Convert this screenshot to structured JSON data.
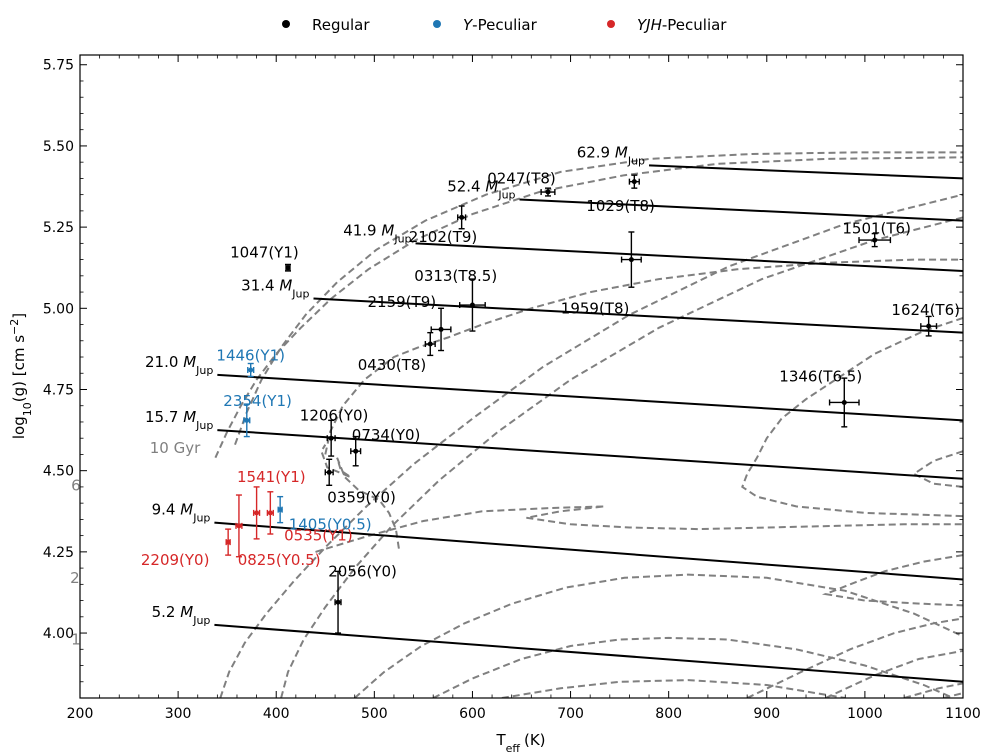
{
  "chart_data": {
    "type": "scatter",
    "xlabel": "T",
    "xlabel_sub": "eff",
    "xlabel_unit": "(K)",
    "ylabel_main": "log",
    "ylabel_sub": "10",
    "ylabel_mid": "(g) [cm s",
    "ylabel_sup": "−2",
    "ylabel_end": "]",
    "xlim": [
      200,
      1100
    ],
    "ylim": [
      3.8,
      5.78
    ],
    "x_ticks": [
      200,
      300,
      400,
      500,
      600,
      700,
      800,
      900,
      1000,
      1100
    ],
    "y_ticks": [
      4.0,
      4.25,
      4.5,
      4.75,
      5.0,
      5.25,
      5.5,
      5.75
    ],
    "y_tick_labels": [
      "4.00",
      "4.25",
      "4.50",
      "4.75",
      "5.00",
      "5.25",
      "5.50",
      "5.75"
    ],
    "legend": [
      {
        "label": "Regular",
        "italic_part": "",
        "rest": "Regular",
        "color": "#000000"
      },
      {
        "label": "Y-Peculiar",
        "italic_part": "Y",
        "rest": "-Peculiar",
        "color": "#1f77b4"
      },
      {
        "label": "YJH-Peculiar",
        "italic_part": "YJH",
        "rest": "-Peculiar",
        "color": "#d62728"
      }
    ],
    "mass_unit": "Jup",
    "iso_mass": [
      {
        "mass": "5.2",
        "x0": 337,
        "y0": 4.025,
        "x1": 1100,
        "y1": 3.85
      },
      {
        "mass": "9.4",
        "x0": 337,
        "y0": 4.34,
        "x1": 1100,
        "y1": 4.165
      },
      {
        "mass": "15.7",
        "x0": 340,
        "y0": 4.625,
        "x1": 1100,
        "y1": 4.475
      },
      {
        "mass": "21.0",
        "x0": 340,
        "y0": 4.795,
        "x1": 1100,
        "y1": 4.655
      },
      {
        "mass": "31.4",
        "x0": 438,
        "y0": 5.03,
        "x1": 1100,
        "y1": 4.925
      },
      {
        "mass": "41.9",
        "x0": 542,
        "y0": 5.2,
        "x1": 1100,
        "y1": 5.115
      },
      {
        "mass": "52.4",
        "x0": 648,
        "y0": 5.335,
        "x1": 1100,
        "y1": 5.27
      },
      {
        "mass": "62.9",
        "x0": 780,
        "y0": 5.44,
        "x1": 1100,
        "y1": 5.4
      }
    ],
    "isochrones": [
      {
        "age": "1",
        "points": [
          [
            343,
            3.8
          ],
          [
            352,
            3.88
          ],
          [
            368,
            3.97
          ],
          [
            390,
            4.06
          ],
          [
            418,
            4.16
          ],
          [
            452,
            4.27
          ],
          [
            492,
            4.39
          ],
          [
            540,
            4.52
          ],
          [
            600,
            4.66
          ],
          [
            672,
            4.82
          ],
          [
            760,
            4.98
          ],
          [
            862,
            5.13
          ],
          [
            980,
            5.26
          ],
          [
            1100,
            5.35
          ]
        ]
      },
      {
        "age": "2",
        "points": [
          [
            405,
            3.8
          ],
          [
            412,
            3.88
          ],
          [
            428,
            3.98
          ],
          [
            450,
            4.08
          ],
          [
            480,
            4.2
          ],
          [
            518,
            4.33
          ],
          [
            566,
            4.47
          ],
          [
            626,
            4.62
          ],
          [
            700,
            4.78
          ],
          [
            790,
            4.94
          ],
          [
            895,
            5.09
          ],
          [
            1010,
            5.21
          ],
          [
            1100,
            5.28
          ]
        ]
      },
      {
        "age": "6",
        "points": [
          [
            358,
            4.58
          ],
          [
            370,
            4.68
          ],
          [
            385,
            4.78
          ],
          [
            405,
            4.88
          ],
          [
            430,
            4.98
          ],
          [
            462,
            5.08
          ],
          [
            502,
            5.18
          ],
          [
            552,
            5.27
          ],
          [
            614,
            5.35
          ],
          [
            690,
            5.42
          ],
          [
            780,
            5.46
          ],
          [
            885,
            5.475
          ],
          [
            990,
            5.48
          ],
          [
            1100,
            5.48
          ]
        ]
      },
      {
        "age": "10 Gyr",
        "points": [
          [
            338,
            4.54
          ],
          [
            350,
            4.62
          ],
          [
            364,
            4.7
          ],
          [
            380,
            4.78
          ],
          [
            400,
            4.86
          ],
          [
            425,
            4.94
          ],
          [
            456,
            5.03
          ],
          [
            494,
            5.12
          ],
          [
            542,
            5.21
          ],
          [
            600,
            5.29
          ],
          [
            670,
            5.36
          ],
          [
            755,
            5.41
          ],
          [
            850,
            5.445
          ],
          [
            960,
            5.46
          ],
          [
            1100,
            5.465
          ]
        ]
      },
      {
        "age": "",
        "points": [
          [
            480,
            3.8
          ],
          [
            510,
            3.88
          ],
          [
            548,
            3.96
          ],
          [
            592,
            4.03
          ],
          [
            640,
            4.09
          ],
          [
            695,
            4.14
          ],
          [
            755,
            4.17
          ],
          [
            820,
            4.18
          ],
          [
            900,
            4.17
          ],
          [
            980,
            4.13
          ],
          [
            1050,
            4.06
          ],
          [
            1100,
            3.99
          ]
        ]
      },
      {
        "age": "",
        "points": [
          [
            560,
            3.8
          ],
          [
            600,
            3.86
          ],
          [
            650,
            3.92
          ],
          [
            700,
            3.96
          ],
          [
            750,
            3.98
          ],
          [
            800,
            3.985
          ],
          [
            860,
            3.98
          ],
          [
            930,
            3.95
          ],
          [
            1000,
            3.9
          ],
          [
            1060,
            3.84
          ],
          [
            1090,
            3.8
          ]
        ]
      },
      {
        "age": "",
        "points": [
          [
            630,
            3.8
          ],
          [
            690,
            3.83
          ],
          [
            750,
            3.85
          ],
          [
            820,
            3.855
          ],
          [
            900,
            3.84
          ],
          [
            980,
            3.8
          ]
        ]
      },
      {
        "age": "",
        "points": [
          [
            880,
            3.8
          ],
          [
            935,
            3.88
          ],
          [
            985,
            3.95
          ],
          [
            1030,
            4.0
          ],
          [
            1070,
            4.03
          ],
          [
            1100,
            4.045
          ]
        ]
      },
      {
        "age": "",
        "points": [
          [
            960,
            3.8
          ],
          [
            1010,
            3.87
          ],
          [
            1055,
            3.92
          ],
          [
            1100,
            3.945
          ]
        ]
      },
      {
        "age": "",
        "points": [
          [
            1040,
            3.8
          ],
          [
            1075,
            3.83
          ],
          [
            1100,
            3.845
          ]
        ]
      },
      {
        "age": "",
        "points": [
          [
            1080,
            3.8
          ],
          [
            1100,
            3.815
          ]
        ]
      },
      {
        "age": "",
        "points": [
          [
            440,
            4.25
          ],
          [
            495,
            4.3
          ],
          [
            550,
            4.345
          ],
          [
            610,
            4.375
          ],
          [
            680,
            4.385
          ],
          [
            735,
            4.39
          ],
          [
            690,
            4.375
          ],
          [
            655,
            4.355
          ],
          [
            700,
            4.335
          ],
          [
            760,
            4.325
          ],
          [
            830,
            4.32
          ],
          [
            900,
            4.325
          ],
          [
            970,
            4.33
          ],
          [
            1040,
            4.335
          ],
          [
            1100,
            4.335
          ]
        ]
      },
      {
        "age": "",
        "points": [
          [
            450,
            4.55
          ],
          [
            455,
            4.62
          ],
          [
            468,
            4.7
          ],
          [
            490,
            4.78
          ],
          [
            520,
            4.85
          ],
          [
            545,
            4.88
          ],
          [
            575,
            4.91
          ],
          [
            610,
            4.95
          ],
          [
            660,
            5.0
          ],
          [
            720,
            5.05
          ],
          [
            790,
            5.09
          ],
          [
            870,
            5.12
          ],
          [
            960,
            5.14
          ],
          [
            1050,
            5.15
          ],
          [
            1100,
            5.15
          ]
        ]
      },
      {
        "age": "",
        "points": [
          [
            525,
            4.26
          ],
          [
            522,
            4.32
          ],
          [
            515,
            4.37
          ],
          [
            505,
            4.41
          ],
          [
            484,
            4.44
          ],
          [
            470,
            4.48
          ],
          [
            462,
            4.54
          ],
          [
            466,
            4.5
          ],
          [
            476,
            4.48
          ],
          [
            452,
            4.51
          ],
          [
            446,
            4.56
          ],
          [
            450,
            4.58
          ]
        ]
      },
      {
        "age": "",
        "points": [
          [
            1100,
            4.97
          ],
          [
            1060,
            4.93
          ],
          [
            1010,
            4.86
          ],
          [
            970,
            4.78
          ],
          [
            940,
            4.72
          ],
          [
            915,
            4.66
          ],
          [
            900,
            4.6
          ],
          [
            890,
            4.54
          ],
          [
            880,
            4.49
          ],
          [
            875,
            4.45
          ],
          [
            890,
            4.42
          ],
          [
            930,
            4.39
          ],
          [
            1000,
            4.37
          ],
          [
            1100,
            4.36
          ]
        ]
      },
      {
        "age": "",
        "points": [
          [
            1100,
            4.24
          ],
          [
            1060,
            4.22
          ],
          [
            1020,
            4.19
          ],
          [
            985,
            4.15
          ],
          [
            960,
            4.12
          ],
          [
            1000,
            4.1
          ],
          [
            1060,
            4.09
          ],
          [
            1100,
            4.085
          ]
        ]
      },
      {
        "age": "",
        "points": [
          [
            1100,
            4.56
          ],
          [
            1070,
            4.53
          ],
          [
            1050,
            4.49
          ],
          [
            1070,
            4.46
          ],
          [
            1100,
            4.45
          ]
        ]
      }
    ],
    "points": [
      {
        "name": "1047(Y1)",
        "x": 412,
        "y": 5.125,
        "xerr": 2,
        "yerr": 0.01,
        "group": "Regular",
        "color": "#000000",
        "lx": 388,
        "ly": 5.172,
        "anchor": "middle"
      },
      {
        "name": "0247(T8)",
        "x": 677,
        "y": 5.358,
        "xerr": 7,
        "yerr": 0.012,
        "group": "Regular",
        "color": "#000000",
        "lx": 650,
        "ly": 5.4,
        "anchor": "middle"
      },
      {
        "name": "1029(T8)",
        "x": 765,
        "y": 5.39,
        "xerr": 5,
        "yerr": 0.02,
        "group": "Regular",
        "color": "#000000",
        "lx": 751,
        "ly": 5.315,
        "anchor": "middle"
      },
      {
        "name": "2102(T9)",
        "x": 589,
        "y": 5.28,
        "xerr": 4,
        "yerr": 0.035,
        "group": "Regular",
        "color": "#000000",
        "lx": 570,
        "ly": 5.22,
        "anchor": "middle"
      },
      {
        "name": "1959(T8)",
        "x": 762,
        "y": 5.15,
        "xerr": 10,
        "yerr": 0.085,
        "group": "Regular",
        "color": "#000000",
        "lx": 725,
        "ly": 5.0,
        "anchor": "middle"
      },
      {
        "name": "1501(T6)",
        "x": 1010,
        "y": 5.21,
        "xerr": 16,
        "yerr": 0.02,
        "group": "Regular",
        "color": "#000000",
        "lx": 1012,
        "ly": 5.245,
        "anchor": "middle"
      },
      {
        "name": "0313(T8.5)",
        "x": 600,
        "y": 5.01,
        "xerr": 13,
        "yerr": 0.08,
        "group": "Regular",
        "color": "#000000",
        "lx": 583,
        "ly": 5.1,
        "anchor": "middle"
      },
      {
        "name": "2159(T9)",
        "x": 568,
        "y": 4.935,
        "xerr": 10,
        "yerr": 0.065,
        "group": "Regular",
        "color": "#000000",
        "lx": 528,
        "ly": 5.02,
        "anchor": "middle"
      },
      {
        "name": "0430(T8)",
        "x": 557,
        "y": 4.89,
        "xerr": 5,
        "yerr": 0.035,
        "group": "Regular",
        "color": "#000000",
        "lx": 518,
        "ly": 4.825,
        "anchor": "middle"
      },
      {
        "name": "1624(T6)",
        "x": 1065,
        "y": 4.945,
        "xerr": 8,
        "yerr": 0.03,
        "group": "Regular",
        "color": "#000000",
        "lx": 1062,
        "ly": 4.995,
        "anchor": "middle"
      },
      {
        "name": "1346(T6.5)",
        "x": 979,
        "y": 4.71,
        "xerr": 15,
        "yerr": 0.075,
        "group": "Regular",
        "color": "#000000",
        "lx": 955,
        "ly": 4.79,
        "anchor": "middle"
      },
      {
        "name": "1206(Y0)",
        "x": 456,
        "y": 4.6,
        "xerr": 4,
        "yerr": 0.055,
        "group": "Regular",
        "color": "#000000",
        "lx": 459,
        "ly": 4.67,
        "anchor": "middle"
      },
      {
        "name": "0734(Y0)",
        "x": 481,
        "y": 4.56,
        "xerr": 5,
        "yerr": 0.045,
        "group": "Regular",
        "color": "#000000",
        "lx": 512,
        "ly": 4.61,
        "anchor": "middle"
      },
      {
        "name": "0359(Y0)",
        "x": 454,
        "y": 4.495,
        "xerr": 4,
        "yerr": 0.04,
        "group": "Regular",
        "color": "#000000",
        "lx": 487,
        "ly": 4.418,
        "anchor": "middle"
      },
      {
        "name": "2056(Y0)",
        "x": 463,
        "y": 4.095,
        "xerr": 3,
        "yerr": 0.095,
        "group": "Regular",
        "color": "#000000",
        "lx": 488,
        "ly": 4.19,
        "anchor": "middle"
      },
      {
        "name": "1446(Y1)",
        "x": 374,
        "y": 4.81,
        "xerr": 3,
        "yerr": 0.02,
        "group": "Y-Peculiar",
        "color": "#1f77b4",
        "lx": 374,
        "ly": 4.855,
        "anchor": "middle"
      },
      {
        "name": "2354(Y1)",
        "x": 370,
        "y": 4.655,
        "xerr": 3,
        "yerr": 0.05,
        "group": "Y-Peculiar",
        "color": "#1f77b4",
        "lx": 381,
        "ly": 4.715,
        "anchor": "middle"
      },
      {
        "name": "1405(Y0.5)",
        "x": 404,
        "y": 4.38,
        "xerr": 2,
        "yerr": 0.04,
        "group": "Y-Peculiar",
        "color": "#1f77b4",
        "lx": 455,
        "ly": 4.335,
        "anchor": "middle"
      },
      {
        "name": "1541(Y1)",
        "x": 380,
        "y": 4.37,
        "xerr": 3,
        "yerr": 0.08,
        "group": "YJH-Peculiar",
        "color": "#d62728",
        "lx": 395,
        "ly": 4.48,
        "anchor": "middle"
      },
      {
        "name": "0535(Y1)",
        "x": 394,
        "y": 4.37,
        "xerr": 3,
        "yerr": 0.065,
        "group": "YJH-Peculiar",
        "color": "#d62728",
        "lx": 443,
        "ly": 4.3,
        "anchor": "middle"
      },
      {
        "name": "2209(Y0)",
        "x": 351,
        "y": 4.28,
        "xerr": 2,
        "yerr": 0.04,
        "group": "YJH-Peculiar",
        "color": "#d62728",
        "lx": 297,
        "ly": 4.225,
        "anchor": "middle"
      },
      {
        "name": "0825(Y0.5)",
        "x": 362,
        "y": 4.33,
        "xerr": 3,
        "yerr": 0.095,
        "group": "YJH-Peculiar",
        "color": "#d62728",
        "lx": 403,
        "ly": 4.225,
        "anchor": "middle"
      }
    ]
  }
}
